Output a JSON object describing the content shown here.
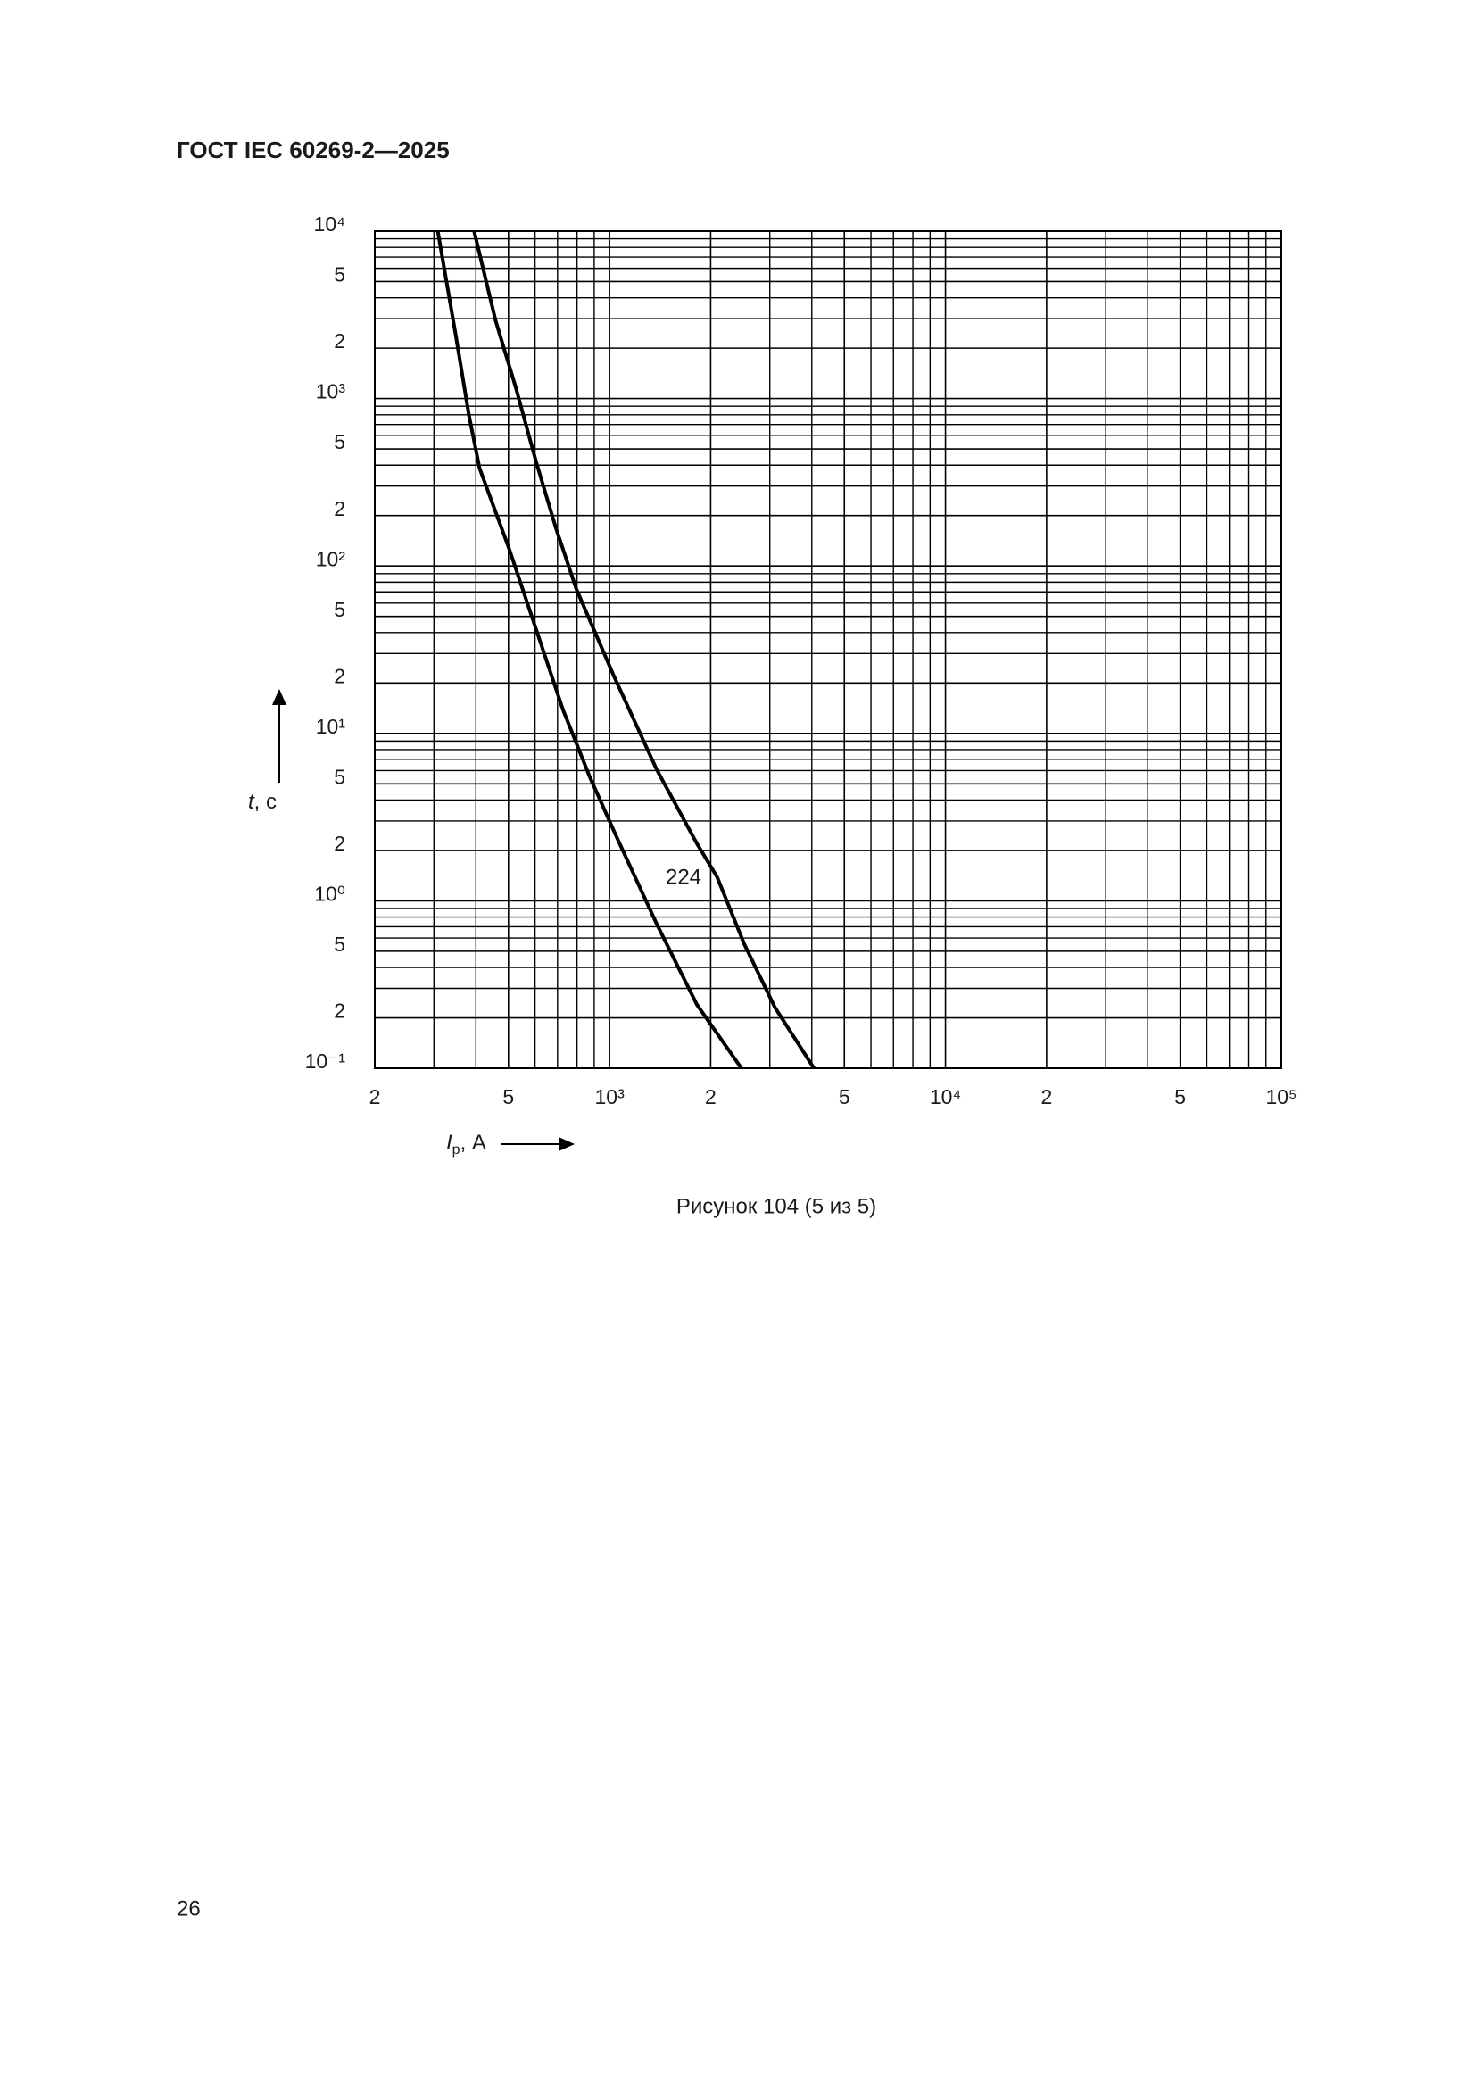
{
  "header": {
    "title": "ГОСТ IEC 60269-2—2025"
  },
  "chart_data": {
    "type": "line",
    "log_x": true,
    "log_y": true,
    "grid": true,
    "xlabel": {
      "symbol": "I",
      "subscript": "р",
      "unit": ", А"
    },
    "ylabel": {
      "symbol": "t",
      "unit": ", с"
    },
    "xlim": [
      200,
      100000
    ],
    "ylim": [
      0.1,
      10000
    ],
    "xticks": [
      {
        "value": 200,
        "label": "2"
      },
      {
        "value": 500,
        "label": "5"
      },
      {
        "value": 1000,
        "label": "10³"
      },
      {
        "value": 2000,
        "label": "2"
      },
      {
        "value": 5000,
        "label": "5"
      },
      {
        "value": 10000,
        "label": "10⁴"
      },
      {
        "value": 20000,
        "label": "2"
      },
      {
        "value": 50000,
        "label": "5"
      },
      {
        "value": 100000,
        "label": "10⁵"
      }
    ],
    "xminorticks": [
      300,
      400,
      600,
      700,
      800,
      900,
      3000,
      4000,
      6000,
      7000,
      8000,
      9000,
      30000,
      40000,
      60000,
      70000,
      80000,
      90000
    ],
    "yticks": [
      {
        "value": 0.1,
        "label": "10⁻¹"
      },
      {
        "value": 0.2,
        "label": "2"
      },
      {
        "value": 0.5,
        "label": "5"
      },
      {
        "value": 1,
        "label": "10⁰"
      },
      2,
      5,
      {
        "value": 10,
        "label": "10¹"
      },
      {
        "value": 20,
        "label": "2"
      },
      {
        "value": 50,
        "label": "5"
      },
      {
        "value": 100,
        "label": "10²"
      },
      {
        "value": 200,
        "label": "2"
      },
      {
        "value": 500,
        "label": "5"
      },
      {
        "value": 1000,
        "label": "10³"
      },
      {
        "value": 2000,
        "label": "2"
      },
      {
        "value": 5000,
        "label": "5"
      },
      {
        "value": 10000,
        "label": "10⁴"
      }
    ],
    "yminorticks": [
      0.3,
      0.4,
      0.6,
      0.7,
      0.8,
      0.9,
      3,
      4,
      6,
      7,
      8,
      9,
      30,
      40,
      60,
      70,
      80,
      90,
      300,
      400,
      600,
      700,
      800,
      900,
      3000,
      4000,
      6000,
      7000,
      8000,
      9000
    ],
    "series": [
      {
        "color": "#000000",
        "x": [
          308,
          348,
          381,
          410,
          502,
          604,
          726,
          873,
          1050,
          1380,
          1820,
          2470
        ],
        "values": [
          10000,
          2420,
          802,
          384,
          127,
          42,
          13.9,
          5.5,
          2.4,
          0.73,
          0.24,
          0.1
        ]
      },
      {
        "color": "#000000",
        "x": [
          395,
          458,
          526,
          604,
          693,
          796,
          1030,
          1380,
          1820,
          2090,
          2520,
          3110,
          4060
        ],
        "values": [
          10000,
          2910,
          1160,
          421,
          167,
          73,
          22,
          6.1,
          2.2,
          1.39,
          0.55,
          0.23,
          0.1
        ]
      }
    ],
    "annotations": [
      "224"
    ]
  },
  "caption": "Рисунок 104 (5 из 5)",
  "page_number": "26"
}
